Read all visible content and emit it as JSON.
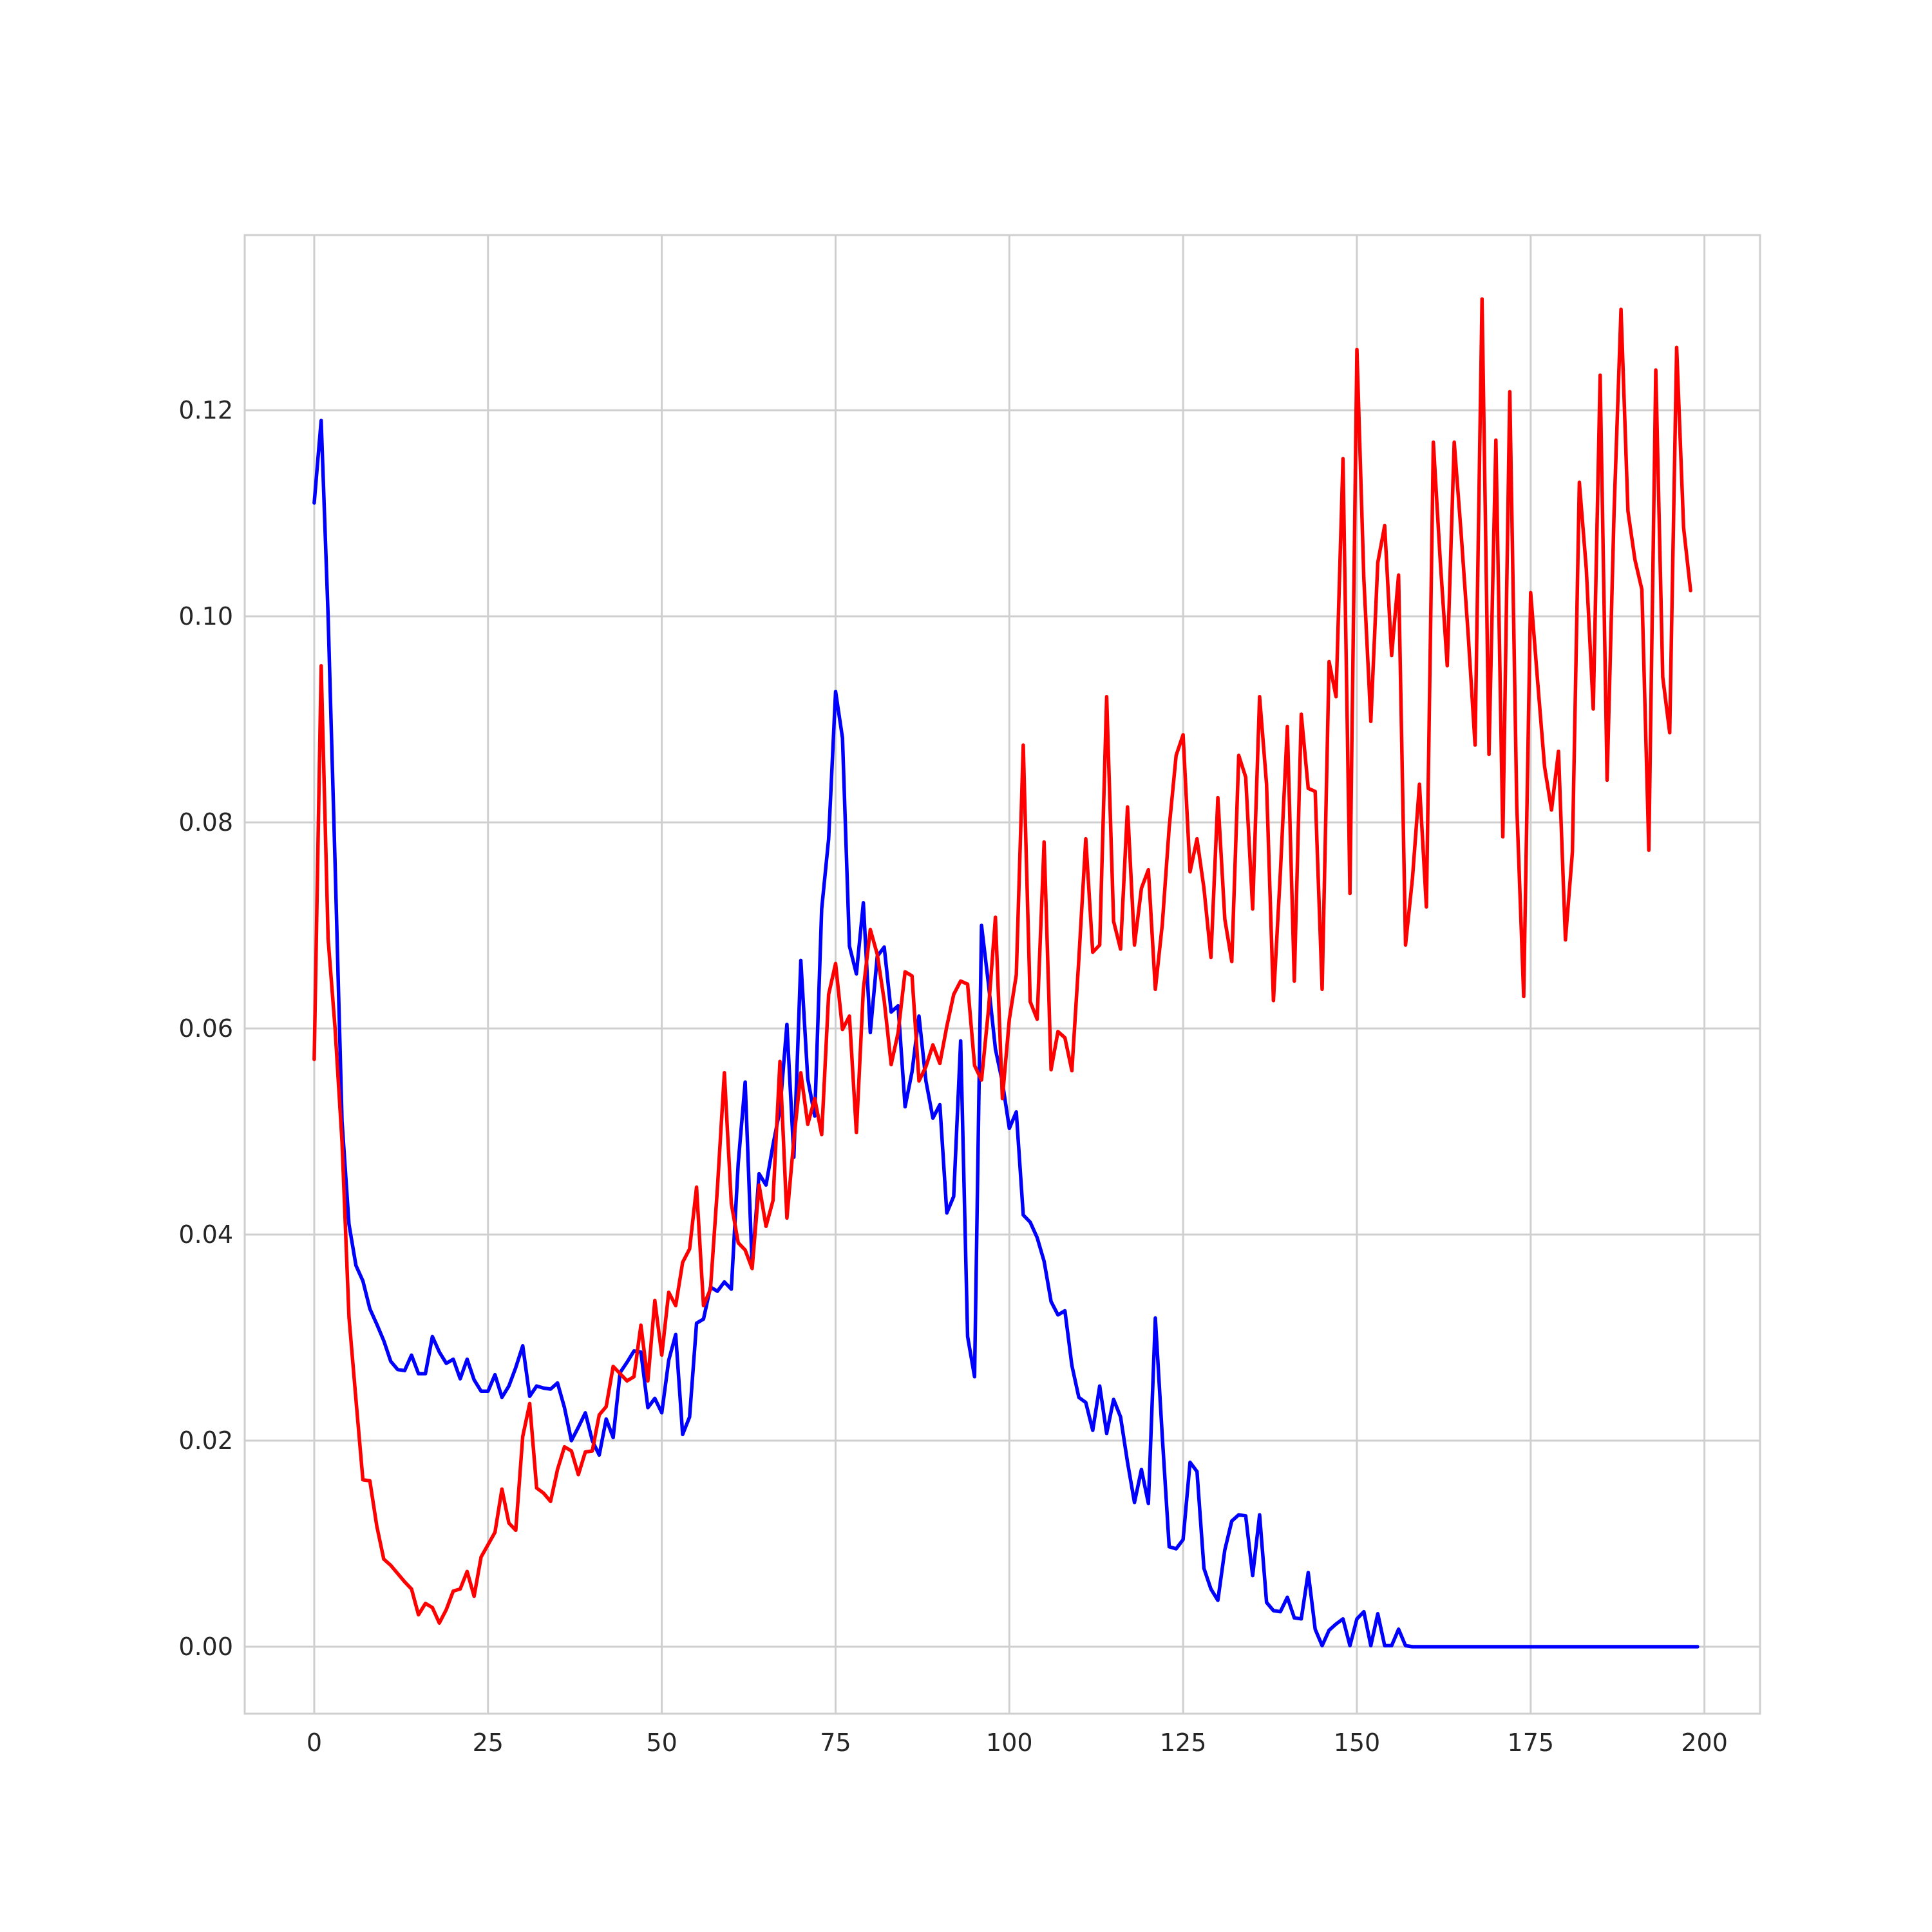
{
  "chart_data": {
    "type": "line",
    "title": "",
    "xlabel": "",
    "ylabel": "",
    "xlim": [
      -10,
      208
    ],
    "ylim": [
      -0.0065,
      0.137
    ],
    "x_ticks": [
      0,
      25,
      50,
      75,
      100,
      125,
      150,
      175,
      200
    ],
    "y_ticks": [
      0.0,
      0.02,
      0.04,
      0.06,
      0.08,
      0.1,
      0.12
    ],
    "x_tick_labels": [
      "0",
      "25",
      "50",
      "75",
      "100",
      "125",
      "150",
      "175",
      "200"
    ],
    "y_tick_labels": [
      "0.00",
      "0.02",
      "0.04",
      "0.06",
      "0.08",
      "0.10",
      "0.12"
    ],
    "grid": true,
    "legend": "none",
    "series": [
      {
        "color": "#0000ff",
        "x_start": 0,
        "values": [
          0.111,
          0.119,
          0.1,
          0.076,
          0.051,
          0.041,
          0.037,
          0.0355,
          0.0328,
          0.0313,
          0.0297,
          0.0277,
          0.0269,
          0.0268,
          0.0283,
          0.0265,
          0.0265,
          0.0301,
          0.0286,
          0.0275,
          0.0279,
          0.026,
          0.0279,
          0.0259,
          0.0248,
          0.0248,
          0.0264,
          0.0242,
          0.0253,
          0.0271,
          0.0292,
          0.0243,
          0.0253,
          0.0251,
          0.025,
          0.0256,
          0.0232,
          0.02,
          0.0213,
          0.0227,
          0.02,
          0.0186,
          0.0221,
          0.0203,
          0.0266,
          0.0276,
          0.0287,
          0.0286,
          0.0232,
          0.0241,
          0.0227,
          0.0278,
          0.0303,
          0.0206,
          0.0223,
          0.0314,
          0.0318,
          0.0349,
          0.0345,
          0.0354,
          0.0347,
          0.0469,
          0.0548,
          0.0369,
          0.0459,
          0.0448,
          0.0487,
          0.0521,
          0.0604,
          0.0475,
          0.0666,
          0.0551,
          0.0515,
          0.0716,
          0.0784,
          0.0927,
          0.0882,
          0.068,
          0.0653,
          0.0722,
          0.0596,
          0.067,
          0.0679,
          0.0616,
          0.0622,
          0.0524,
          0.0558,
          0.0612,
          0.0549,
          0.0513,
          0.0526,
          0.0421,
          0.0437,
          0.0588,
          0.0301,
          0.0262,
          0.07,
          0.0643,
          0.058,
          0.0548,
          0.0503,
          0.0519,
          0.0419,
          0.0412,
          0.0397,
          0.0374,
          0.0335,
          0.0322,
          0.0326,
          0.0273,
          0.0242,
          0.0237,
          0.021,
          0.0253,
          0.0207,
          0.024,
          0.0223,
          0.0179,
          0.014,
          0.0172,
          0.0139,
          0.0319,
          0.0204,
          0.0097,
          0.0095,
          0.0104,
          0.0179,
          0.017,
          0.0076,
          0.0056,
          0.0045,
          0.0094,
          0.0122,
          0.0128,
          0.0127,
          0.0069,
          0.0128,
          0.0043,
          0.0035,
          0.0034,
          0.0048,
          0.0028,
          0.0027,
          0.0072,
          0.0017,
          0.0001,
          0.0016,
          0.0022,
          0.0027,
          0.0001,
          0.0027,
          0.0034,
          0.0001,
          0.0032,
          0.0001,
          0.0001,
          0.0017,
          0.0001,
          0,
          0,
          0,
          0,
          0,
          0,
          0,
          0,
          0,
          0,
          0,
          0,
          0,
          0,
          0,
          0,
          0,
          0,
          0,
          0,
          0,
          0,
          0,
          0,
          0,
          0,
          0,
          0,
          0,
          0,
          0,
          0,
          0,
          0,
          0,
          0,
          0,
          0,
          0,
          0,
          0,
          0
        ]
      },
      {
        "color": "#ff0000",
        "x_start": 0,
        "values": [
          0.057,
          0.0952,
          0.0687,
          0.06,
          0.049,
          0.032,
          0.024,
          0.0162,
          0.0161,
          0.0117,
          0.0085,
          0.0079,
          0.0071,
          0.0063,
          0.0056,
          0.0031,
          0.0042,
          0.0038,
          0.0023,
          0.0036,
          0.0054,
          0.0056,
          0.0073,
          0.0049,
          0.0087,
          0.0099,
          0.0111,
          0.0153,
          0.012,
          0.0113,
          0.0204,
          0.0236,
          0.0154,
          0.0149,
          0.0141,
          0.0172,
          0.0194,
          0.019,
          0.0167,
          0.0189,
          0.019,
          0.0225,
          0.0233,
          0.0272,
          0.0265,
          0.0258,
          0.0262,
          0.0312,
          0.0258,
          0.0336,
          0.0283,
          0.0344,
          0.0331,
          0.0373,
          0.0386,
          0.0446,
          0.0331,
          0.0347,
          0.0445,
          0.0557,
          0.043,
          0.0392,
          0.0385,
          0.0367,
          0.0448,
          0.0408,
          0.0433,
          0.0568,
          0.0416,
          0.0492,
          0.0557,
          0.0507,
          0.0532,
          0.0497,
          0.0633,
          0.0663,
          0.0599,
          0.0612,
          0.0499,
          0.0638,
          0.0696,
          0.0672,
          0.0627,
          0.0565,
          0.0596,
          0.0655,
          0.0651,
          0.0549,
          0.0563,
          0.0584,
          0.0566,
          0.0602,
          0.0633,
          0.0646,
          0.0643,
          0.0564,
          0.055,
          0.0618,
          0.0708,
          0.0532,
          0.0609,
          0.0652,
          0.0875,
          0.0626,
          0.0609,
          0.0781,
          0.056,
          0.0597,
          0.0591,
          0.0559,
          0.0667,
          0.0784,
          0.0674,
          0.0681,
          0.0922,
          0.0704,
          0.0677,
          0.0815,
          0.0681,
          0.0736,
          0.0754,
          0.0638,
          0.0701,
          0.0795,
          0.0865,
          0.0885,
          0.0752,
          0.0784,
          0.0736,
          0.0669,
          0.0824,
          0.0706,
          0.0665,
          0.0865,
          0.0844,
          0.0716,
          0.0922,
          0.0837,
          0.0627,
          0.0752,
          0.0893,
          0.0646,
          0.0905,
          0.0833,
          0.083,
          0.0638,
          0.0956,
          0.0922,
          0.1153,
          0.0731,
          0.1259,
          0.1036,
          0.0898,
          0.1052,
          0.1088,
          0.0962,
          0.104,
          0.0681,
          0.0746,
          0.0837,
          0.0718,
          0.1169,
          0.1053,
          0.0952,
          0.1169,
          0.108,
          0.0983,
          0.0875,
          0.1308,
          0.0866,
          0.1171,
          0.0786,
          0.1218,
          0.0817,
          0.0631,
          0.1023,
          0.0937,
          0.0854,
          0.0812,
          0.0869,
          0.0686,
          0.0771,
          0.113,
          0.1046,
          0.091,
          0.1234,
          0.0841,
          0.1101,
          0.1298,
          0.1102,
          0.1055,
          0.1026,
          0.0773,
          0.1239,
          0.0941,
          0.0887,
          0.1261,
          0.1086,
          0.1025
        ]
      }
    ]
  }
}
